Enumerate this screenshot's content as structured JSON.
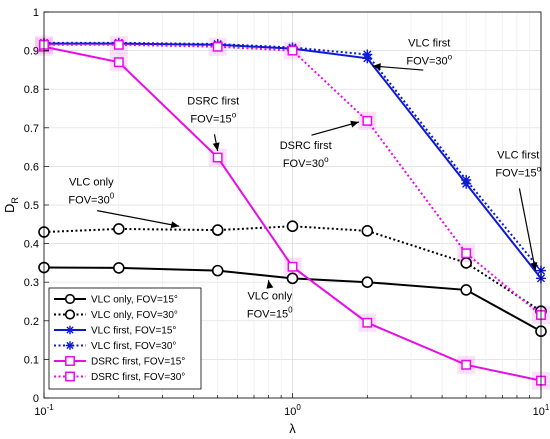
{
  "chart_data": {
    "type": "line",
    "xlabel": "λ",
    "ylabel": "D",
    "ylabel_sub": "R",
    "xscale": "log",
    "xlim": [
      0.1,
      10
    ],
    "ylim": [
      0,
      1
    ],
    "xticks": [
      0.1,
      1,
      10
    ],
    "xtick_bases": [
      "10",
      "10",
      "10"
    ],
    "xtick_exps": [
      "-1",
      "0",
      "1"
    ],
    "yticks": [
      0,
      0.1,
      0.2,
      0.3,
      0.4,
      0.5,
      0.6,
      0.7,
      0.8,
      0.9,
      1
    ],
    "ytick_labels": [
      "0",
      "0.1",
      "0.2",
      "0.3",
      "0.4",
      "0.5",
      "0.6",
      "0.7",
      "0.8",
      "0.9",
      "1"
    ],
    "grid": true,
    "legend_position": "bottom-left",
    "x": [
      0.1,
      0.2,
      0.5,
      1,
      2,
      5,
      10
    ],
    "series": [
      {
        "name": "VLC only, FOV=15°",
        "color": "#000000",
        "dash": "solid",
        "marker": "circle",
        "values": [
          0.338,
          0.337,
          0.33,
          0.31,
          0.3,
          0.28,
          0.173
        ]
      },
      {
        "name": "VLC only, FOV=30°",
        "color": "#000000",
        "dash": "dotted",
        "marker": "circle",
        "values": [
          0.43,
          0.438,
          0.435,
          0.445,
          0.433,
          0.35,
          0.225
        ]
      },
      {
        "name": "VLC first, FOV=15°",
        "color": "#0c1ad8",
        "dash": "solid",
        "marker": "star",
        "values": [
          0.918,
          0.918,
          0.915,
          0.905,
          0.88,
          0.555,
          0.31
        ]
      },
      {
        "name": "VLC first, FOV=30°",
        "color": "#0c1ad8",
        "dash": "dotted",
        "marker": "star",
        "values": [
          0.92,
          0.92,
          0.917,
          0.908,
          0.89,
          0.565,
          0.33
        ]
      },
      {
        "name": "DSRC first, FOV=15°",
        "color": "#e80ce8",
        "dash": "solid",
        "marker": "square",
        "values": [
          0.91,
          0.87,
          0.623,
          0.34,
          0.195,
          0.086,
          0.045
        ]
      },
      {
        "name": "DSRC first, FOV=30°",
        "color": "#e80ce8",
        "dash": "dotted",
        "marker": "square",
        "values": [
          0.915,
          0.915,
          0.91,
          0.9,
          0.718,
          0.375,
          0.215
        ]
      }
    ],
    "annotations": [
      {
        "line1": "VLC first",
        "line2_base": "FOV=30",
        "sup": "o",
        "x": 3.55,
        "y": 0.895,
        "arrow_to": [
          2.1,
          0.86
        ]
      },
      {
        "line1": "DSRC first",
        "line2_base": "FOV=15",
        "sup": "o",
        "x": 0.48,
        "y": 0.745,
        "arrow_to": [
          0.5,
          0.64
        ]
      },
      {
        "line1": "DSRC first",
        "line2_base": "FOV=30",
        "sup": "o",
        "x": 1.13,
        "y": 0.63,
        "arrow_to": [
          1.85,
          0.715
        ]
      },
      {
        "line1": "VLC only",
        "line2_base": "FOV=30",
        "sup": "0",
        "x": 0.155,
        "y": 0.535,
        "arrow_to": [
          0.35,
          0.445
        ]
      },
      {
        "line1": "VLC first",
        "line2_base": "FOV=15",
        "sup": "o",
        "x": 8.1,
        "y": 0.605,
        "arrow_to": [
          9.5,
          0.33
        ]
      },
      {
        "line1": "VLC only",
        "line2_base": "FOV=15",
        "sup": "0",
        "x": 0.81,
        "y": 0.24,
        "arrow_to": [
          0.8,
          0.305
        ]
      }
    ]
  }
}
